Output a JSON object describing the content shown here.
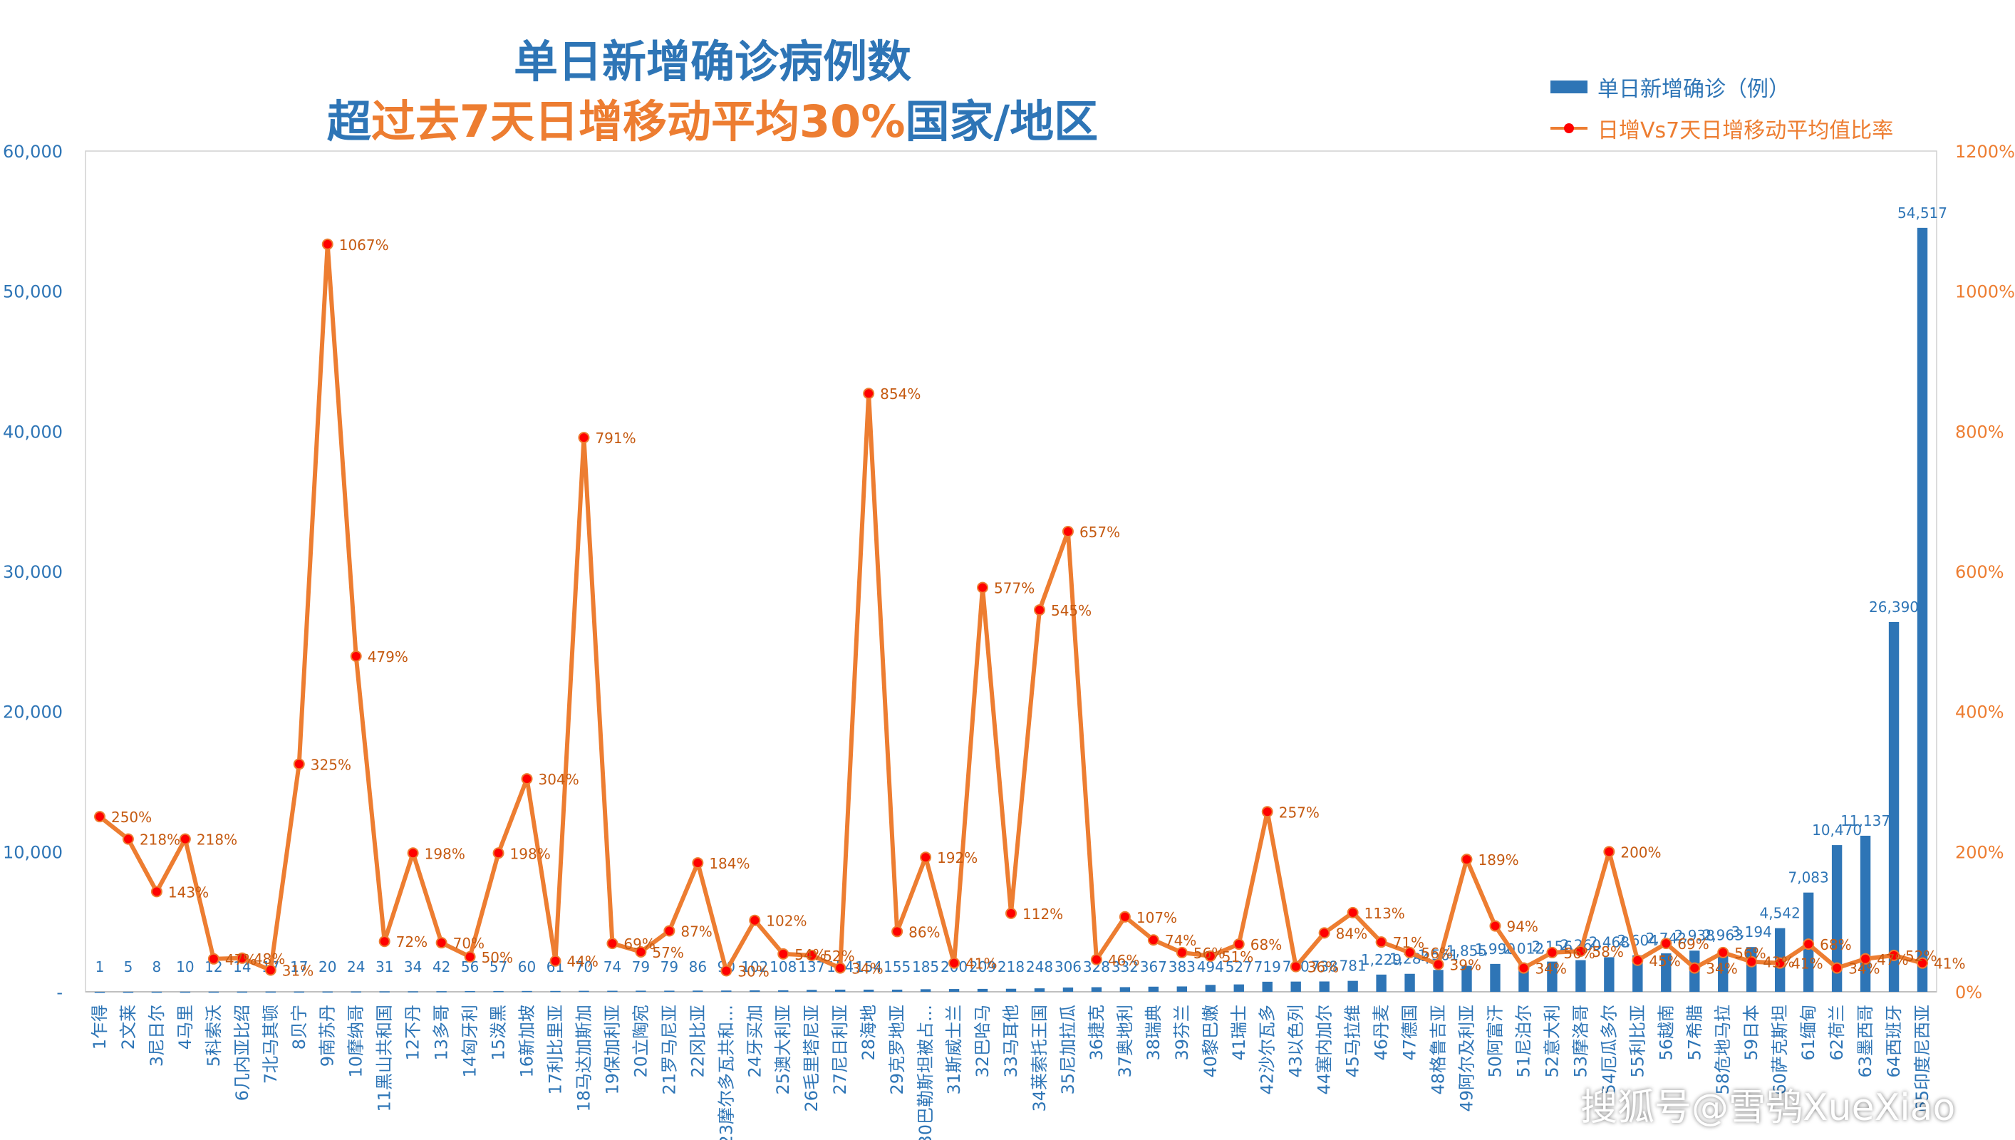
{
  "title": {
    "line1": "单日新增确诊病例数",
    "line2_parts": [
      {
        "text": "超",
        "color": "#2E75B6"
      },
      {
        "text": "过去7天日增移动平均30%",
        "color": "#ED7D31"
      },
      {
        "text": "国家/地区",
        "color": "#2E75B6"
      }
    ]
  },
  "legend": {
    "bar": "单日新增确诊（例）",
    "line": "日增Vs7天日增移动平均值比率"
  },
  "watermark": "搜狐号@雪鸮XueXiao",
  "colors": {
    "bar": "#2E75B6",
    "line": "#ED7D31",
    "marker": "#FF0000",
    "left_axis_labels": "#2E75B6",
    "right_axis_labels": "#ED7D31"
  },
  "chart_data": {
    "type": "bar",
    "secondary_type": "line",
    "categories": [
      "1乍得",
      "2文莱",
      "3尼日尔",
      "4马里",
      "5科索沃",
      "6几内亚比绍",
      "7北马其顿",
      "8贝宁",
      "9南苏丹",
      "10摩纳哥",
      "11黑山共和国",
      "12不丹",
      "13多哥",
      "14匈牙利",
      "15泼黑",
      "16新加坡",
      "17利比里亚",
      "18马达加斯加",
      "19保加利亚",
      "20立陶宛",
      "21罗马尼亚",
      "22冈比亚",
      "23摩尔多瓦共和…",
      "24牙买加",
      "25澳大利亚",
      "26毛里塔尼亚",
      "27尼日利亚",
      "28海地",
      "29克罗地亚",
      "30巴勒斯坦被占…",
      "31斯威士兰",
      "32巴哈马",
      "33马耳他",
      "34莱索托王国",
      "35尼加拉瓜",
      "36捷克",
      "37奥地利",
      "38瑞典",
      "39芬兰",
      "40黎巴嫩",
      "41瑞士",
      "42沙尔瓦多",
      "43以色列",
      "44塞内加尔",
      "45马拉维",
      "46丹麦",
      "47德国",
      "48格鲁吉亚",
      "49阿尔及利亚",
      "50阿富汗",
      "51尼泊尔",
      "52意大利",
      "53摩洛哥",
      "54厄瓜多尔",
      "55利比亚",
      "56越南",
      "57希腊",
      "58危地马拉",
      "59日本",
      "60萨克斯坦",
      "61缅甸",
      "62荷兰",
      "63墨西哥",
      "64西班牙",
      "65印度尼西亚"
    ],
    "series": [
      {
        "name": "单日新增确诊（例）",
        "type": "bar",
        "axis": "left",
        "values": [
          1,
          5,
          8,
          10,
          12,
          14,
          17,
          17,
          20,
          24,
          31,
          34,
          42,
          56,
          57,
          60,
          61,
          70,
          74,
          79,
          79,
          86,
          90,
          102,
          108,
          137,
          154,
          154,
          155,
          185,
          200,
          209,
          218,
          248,
          306,
          328,
          332,
          367,
          383,
          494,
          527,
          719,
          730,
          738,
          781,
          1229,
          1284,
          1561,
          1855,
          1990,
          2012,
          2156,
          2260,
          2468,
          2604,
          2742,
          2938,
          2963,
          3194,
          4542,
          7083,
          10470,
          11137,
          26390,
          54517
        ],
        "labels": [
          "1",
          "5",
          "8",
          "10",
          "12",
          "14",
          "17",
          "17",
          "20",
          "24",
          "31",
          "34",
          "42",
          "56",
          "57",
          "60",
          "61",
          "70",
          "74",
          "79",
          "79",
          "86",
          "90",
          "102",
          "108",
          "137",
          "154",
          "154",
          "155",
          "185",
          "200",
          "209",
          "218",
          "248",
          "306",
          "328",
          "332",
          "367",
          "383",
          "494",
          "527",
          "719",
          "730",
          "738",
          "781",
          "1,229",
          "1,284",
          "1,561",
          "1,855",
          "1,990",
          "2,012",
          "2,156",
          "2,260",
          "2,468",
          "2,604",
          "2,742",
          "2,938",
          "2,963",
          "3,194",
          "4,542",
          "7,083",
          "10,470",
          "11,137",
          "26,390",
          "54,517"
        ]
      },
      {
        "name": "日增Vs7天日增移动平均值比率",
        "type": "line",
        "axis": "right",
        "values": [
          250,
          218,
          143,
          218,
          47,
          48,
          31,
          325,
          1067,
          479,
          72,
          198,
          70,
          50,
          198,
          304,
          44,
          791,
          69,
          57,
          87,
          184,
          30,
          102,
          54,
          52,
          34,
          854,
          86,
          192,
          41,
          577,
          112,
          545,
          657,
          46,
          107,
          74,
          56,
          51,
          68,
          257,
          36,
          84,
          113,
          71,
          56,
          39,
          189,
          94,
          34,
          56,
          58,
          200,
          45,
          69,
          34,
          56,
          43,
          41,
          68,
          34,
          47,
          52,
          41
        ],
        "labels": [
          "250%",
          "218%",
          "143%",
          "218%",
          "47%",
          "48%",
          "31%",
          "325%",
          "1067%",
          "479%",
          "72%",
          "198%",
          "70%",
          "50%",
          "198%",
          "304%",
          "44%",
          "791%",
          "69%",
          "57%",
          "87%",
          "184%",
          "30%",
          "102%",
          "54%",
          "52%",
          "34%",
          "854%",
          "86%",
          "192%",
          "41%",
          "577%",
          "112%",
          "545%",
          "657%",
          "46%",
          "107%",
          "74%",
          "56%",
          "51%",
          "68%",
          "257%",
          "36%",
          "84%",
          "113%",
          "71%",
          "56%",
          "39%",
          "189%",
          "94%",
          "34%",
          "56%",
          "58%",
          "200%",
          "45%",
          "69%",
          "34%",
          "56%",
          "43%",
          "41%",
          "68%",
          "34%",
          "47%",
          "52%",
          "41%"
        ]
      }
    ],
    "y_left": {
      "lim": [
        0,
        60000
      ],
      "ticks": [
        0,
        10000,
        20000,
        30000,
        40000,
        50000,
        60000
      ],
      "tick_labels": [
        "-",
        "10,000",
        "20,000",
        "30,000",
        "40,000",
        "50,000",
        "60,000"
      ]
    },
    "y_right": {
      "lim": [
        0,
        1200
      ],
      "ticks": [
        0,
        200,
        400,
        600,
        800,
        1000,
        1200
      ],
      "tick_labels": [
        "0%",
        "200%",
        "400%",
        "600%",
        "800%",
        "1000%",
        "1200%"
      ]
    },
    "grid": false,
    "legend_position": "top-right"
  }
}
